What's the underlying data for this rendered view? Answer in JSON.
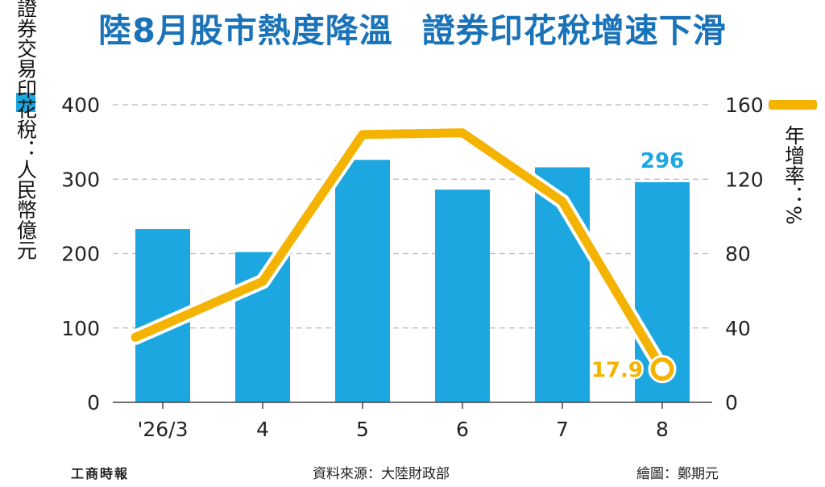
{
  "title_part1": "陸8月股市熱度降溫",
  "title_part2": "證券印花稅增速下滑",
  "footer": {
    "publisher": "工商時報",
    "source": "資料來源：大陸財政部",
    "credit": "繪圖：鄭期元"
  },
  "colors": {
    "bar": "#1ca7e0",
    "line": "#f5b301",
    "title": "#1a73b8"
  },
  "chart_data": {
    "type": "bar",
    "categories": [
      "'26/3",
      "4",
      "5",
      "6",
      "7",
      "8"
    ],
    "series": [
      {
        "name": "證券交易印花稅：人民幣億元",
        "type": "bar",
        "axis": "left",
        "values": [
          233,
          202,
          326,
          286,
          316,
          296
        ]
      },
      {
        "name": "年增率：%",
        "type": "line",
        "axis": "right",
        "values": [
          35,
          65,
          144,
          145,
          108,
          17.9
        ]
      }
    ],
    "data_labels": [
      {
        "series": 0,
        "index": 5,
        "text": "296"
      },
      {
        "series": 1,
        "index": 5,
        "text": "17.9"
      }
    ],
    "ylim": [
      0,
      400
    ],
    "yticks": [
      "0",
      "100",
      "200",
      "300",
      "400"
    ],
    "y2lim": [
      0,
      160
    ],
    "y2ticks": [
      "0",
      "40",
      "80",
      "120",
      "160"
    ],
    "ylabel": "證券交易印花稅：人民幣億元",
    "y2label": "年增率：%",
    "grid": true
  }
}
